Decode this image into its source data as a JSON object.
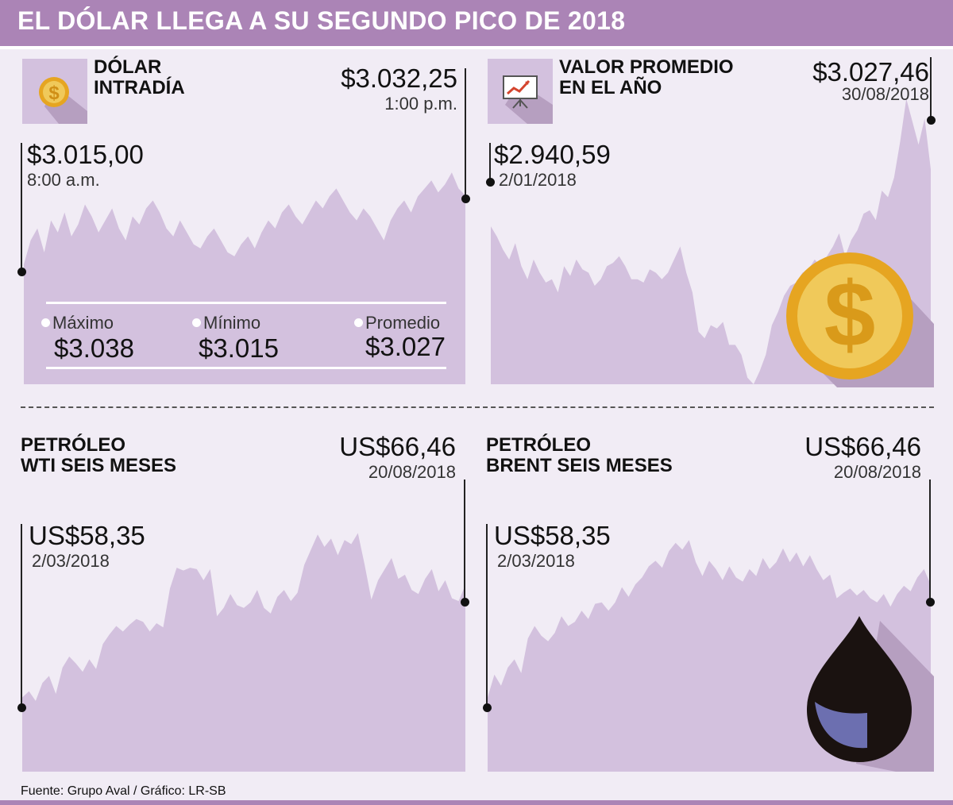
{
  "header": {
    "title": "EL DÓLAR LLEGA A SU SEGUNDO PICO DE 2018"
  },
  "panels": {
    "intraday": {
      "title_line1": "DÓLAR",
      "title_line2": "INTRADÍA",
      "end_value": "$3.032,25",
      "end_label": "1:00 p.m.",
      "start_value": "$3.015,00",
      "start_label": "8:00 a.m.",
      "icon": "dollar-coin-icon",
      "stats": {
        "max_label": "Máximo",
        "max_value": "$3.038",
        "min_label": "Mínimo",
        "min_value": "$3.015",
        "avg_label": "Promedio",
        "avg_value": "$3.027"
      }
    },
    "yearly": {
      "title_line1": "VALOR PROMEDIO",
      "title_line2": "EN EL AÑO",
      "end_value": "$3.027,46",
      "end_label": "30/08/2018",
      "start_value": "$2.940,59",
      "start_label": "2/01/2018",
      "icon": "presentation-chart-icon"
    },
    "wti": {
      "title_line1": "PETRÓLEO",
      "title_line2": "WTI SEIS MESES",
      "end_value": "US$66,46",
      "end_label": "20/08/2018",
      "start_value": "US$58,35",
      "start_label": "2/03/2018"
    },
    "brent": {
      "title_line1": "PETRÓLEO",
      "title_line2": "BRENT SEIS MESES",
      "end_value": "US$66,46",
      "end_label": "20/08/2018",
      "start_value": "US$58,35",
      "start_label": "2/03/2018",
      "icon": "oil-drop-icon"
    }
  },
  "footer": {
    "source": "Fuente: Grupo Aval  / Gráfico: LR-SB"
  },
  "colors": {
    "banner": "#ab84b6",
    "area": "#d3c1de",
    "background": "#f1ecf5",
    "coin": "#e6a521",
    "coin_inner": "#f0c95a"
  },
  "chart_data": [
    {
      "type": "area",
      "series_name": "Dólar intradía",
      "x_start": "8:00 a.m.",
      "x_end": "1:00 p.m.",
      "ylim": [
        2985,
        3045
      ],
      "values": [
        3015,
        3021,
        3024,
        3018,
        3026,
        3023,
        3028,
        3022,
        3025,
        3030,
        3027,
        3023,
        3026,
        3029,
        3024,
        3021,
        3027,
        3025,
        3029,
        3031,
        3028,
        3024,
        3022,
        3026,
        3023,
        3020,
        3019,
        3022,
        3024,
        3021,
        3018,
        3017,
        3020,
        3022,
        3019,
        3023,
        3026,
        3024,
        3028,
        3030,
        3027,
        3025,
        3028,
        3031,
        3029,
        3032,
        3034,
        3031,
        3028,
        3026,
        3029,
        3027,
        3024,
        3021,
        3026,
        3029,
        3031,
        3028,
        3032,
        3034,
        3036,
        3033,
        3035,
        3038,
        3034,
        3032.25
      ]
    },
    {
      "type": "area",
      "series_name": "Valor promedio en el año",
      "x_start": "2/01/2018",
      "x_end": "30/08/2018",
      "ylim": [
        2700,
        3150
      ],
      "values": [
        2940.59,
        2925,
        2905,
        2890,
        2915,
        2880,
        2860,
        2890,
        2870,
        2855,
        2860,
        2840,
        2880,
        2865,
        2890,
        2875,
        2870,
        2850,
        2860,
        2880,
        2885,
        2895,
        2880,
        2860,
        2860,
        2855,
        2875,
        2870,
        2860,
        2870,
        2890,
        2910,
        2870,
        2840,
        2780,
        2770,
        2790,
        2785,
        2795,
        2760,
        2760,
        2745,
        2710,
        2700,
        2720,
        2745,
        2790,
        2810,
        2835,
        2850,
        2855,
        2870,
        2875,
        2890,
        2880,
        2895,
        2910,
        2930,
        2895,
        2920,
        2935,
        2960,
        2965,
        2950,
        2995,
        2985,
        3015,
        3070,
        3135,
        3100,
        3065,
        3105,
        3027.46
      ]
    },
    {
      "type": "area",
      "series_name": "Petróleo WTI seis meses",
      "x_start": "2/03/2018",
      "x_end": "20/08/2018",
      "ylim": [
        53,
        72
      ],
      "values": [
        58.35,
        58.8,
        58.1,
        59.4,
        59.9,
        58.6,
        60.5,
        61.3,
        60.8,
        60.2,
        61.1,
        60.4,
        62.2,
        62.9,
        63.5,
        63.1,
        63.6,
        64.0,
        63.8,
        63.1,
        63.7,
        63.4,
        66.2,
        67.7,
        67.5,
        67.7,
        67.6,
        66.8,
        67.6,
        64.2,
        64.8,
        65.8,
        65.0,
        64.8,
        65.2,
        66.1,
        64.8,
        64.4,
        65.6,
        66.1,
        65.3,
        65.9,
        67.9,
        69.0,
        70.1,
        69.2,
        69.8,
        68.6,
        69.7,
        69.4,
        70.2,
        67.9,
        65.4,
        66.8,
        67.6,
        68.4,
        66.9,
        67.2,
        66.1,
        65.8,
        66.9,
        67.6,
        66.0,
        66.8,
        65.5,
        65.3,
        66.46
      ]
    },
    {
      "type": "area",
      "series_name": "Petróleo Brent seis meses",
      "x_start": "2/03/2018",
      "x_end": "20/08/2018",
      "ylim": [
        53,
        72
      ],
      "values": [
        58.35,
        60.0,
        59.2,
        60.5,
        61.1,
        60.1,
        62.6,
        63.5,
        62.8,
        62.4,
        63.0,
        64.2,
        63.5,
        63.8,
        64.6,
        64.0,
        65.1,
        65.2,
        64.6,
        65.2,
        66.3,
        65.6,
        66.5,
        67.0,
        67.8,
        68.2,
        67.7,
        68.9,
        69.5,
        69.0,
        69.7,
        68.1,
        67.1,
        68.2,
        67.6,
        66.8,
        67.8,
        67.0,
        66.7,
        67.6,
        67.1,
        68.4,
        67.6,
        68.1,
        69.1,
        68.1,
        68.8,
        67.8,
        68.6,
        67.6,
        66.8,
        67.2,
        65.5,
        65.9,
        66.2,
        65.7,
        66.1,
        65.5,
        65.2,
        65.8,
        64.9,
        65.8,
        66.4,
        66.0,
        67.0,
        67.6,
        66.46
      ]
    }
  ]
}
